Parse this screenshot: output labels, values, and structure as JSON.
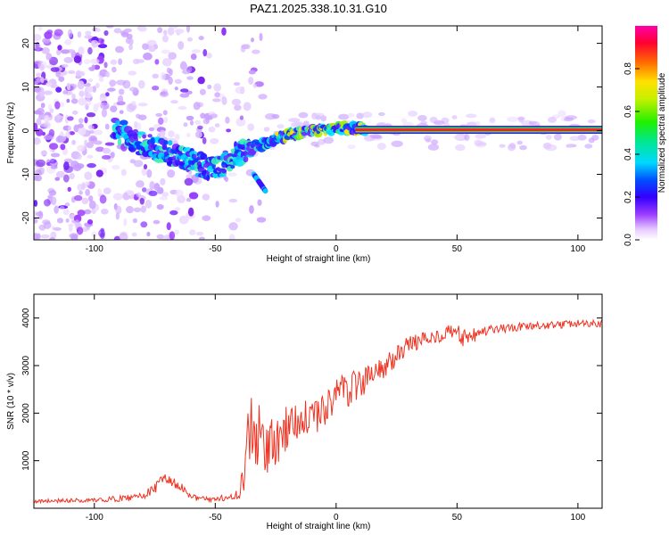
{
  "chart_data": [
    {
      "type": "heatmap",
      "title": "PAZ1.2025.338.10.31.G10",
      "xlabel": "Height of straight line (km)",
      "ylabel": "Frequency (Hz)",
      "xlim": [
        -125,
        110
      ],
      "ylim": [
        -25,
        24
      ],
      "xticks": [
        -100,
        -50,
        0,
        50,
        100
      ],
      "yticks": [
        -20,
        -10,
        0,
        10,
        20
      ],
      "colorbar": {
        "label": "Normalized spectral amplitude",
        "range": [
          0,
          1
        ],
        "ticks": [
          "0.0",
          "0.2",
          "0.4",
          "0.6",
          "0.8"
        ]
      },
      "ridge": [
        {
          "x": -90,
          "y": 0
        },
        {
          "x": -80,
          "y": -3
        },
        {
          "x": -70,
          "y": -5
        },
        {
          "x": -60,
          "y": -7
        },
        {
          "x": -50,
          "y": -9
        },
        {
          "x": -40,
          "y": -5
        },
        {
          "x": -30,
          "y": -3
        },
        {
          "x": -20,
          "y": -1
        },
        {
          "x": -10,
          "y": 0
        },
        {
          "x": 0,
          "y": 0.5
        },
        {
          "x": 10,
          "y": 0.5
        },
        {
          "x": 20,
          "y": 0.2
        },
        {
          "x": 50,
          "y": 0.2
        },
        {
          "x": 110,
          "y": 0.2
        }
      ],
      "branch": [
        {
          "x": -34,
          "y": -10
        },
        {
          "x": -29,
          "y": -14
        }
      ]
    },
    {
      "type": "line",
      "xlabel": "Height of straight line (km)",
      "ylabel": "SNR (10 * v/v)",
      "xlim": [
        -125,
        110
      ],
      "ylim": [
        0,
        4500
      ],
      "xticks": [
        -100,
        -50,
        0,
        50,
        100
      ],
      "yticks": [
        1000,
        2000,
        3000,
        4000
      ],
      "series": [
        {
          "name": "SNR",
          "color": "#ee3322",
          "x": [
            -125,
            -110,
            -100,
            -90,
            -80,
            -70,
            -65,
            -60,
            -55,
            -50,
            -45,
            -40,
            -37,
            -35,
            -32,
            -30,
            -28,
            -25,
            -20,
            -15,
            -10,
            -5,
            0,
            5,
            10,
            15,
            20,
            25,
            30,
            40,
            50,
            52,
            60,
            70,
            80,
            90,
            100,
            110
          ],
          "y": [
            150,
            160,
            170,
            200,
            250,
            600,
            450,
            260,
            190,
            200,
            230,
            300,
            1100,
            1900,
            1500,
            1400,
            1300,
            1300,
            1700,
            2000,
            1800,
            2100,
            2400,
            2500,
            2700,
            2800,
            2950,
            3200,
            3450,
            3600,
            3750,
            3500,
            3700,
            3780,
            3820,
            3850,
            3880,
            3880
          ],
          "noise": [
            40,
            40,
            45,
            60,
            80,
            180,
            120,
            80,
            60,
            60,
            70,
            90,
            700,
            800,
            700,
            650,
            600,
            550,
            500,
            450,
            400,
            450,
            350,
            400,
            450,
            300,
            250,
            200,
            180,
            150,
            150,
            250,
            120,
            100,
            90,
            80,
            80,
            80
          ]
        }
      ]
    }
  ]
}
